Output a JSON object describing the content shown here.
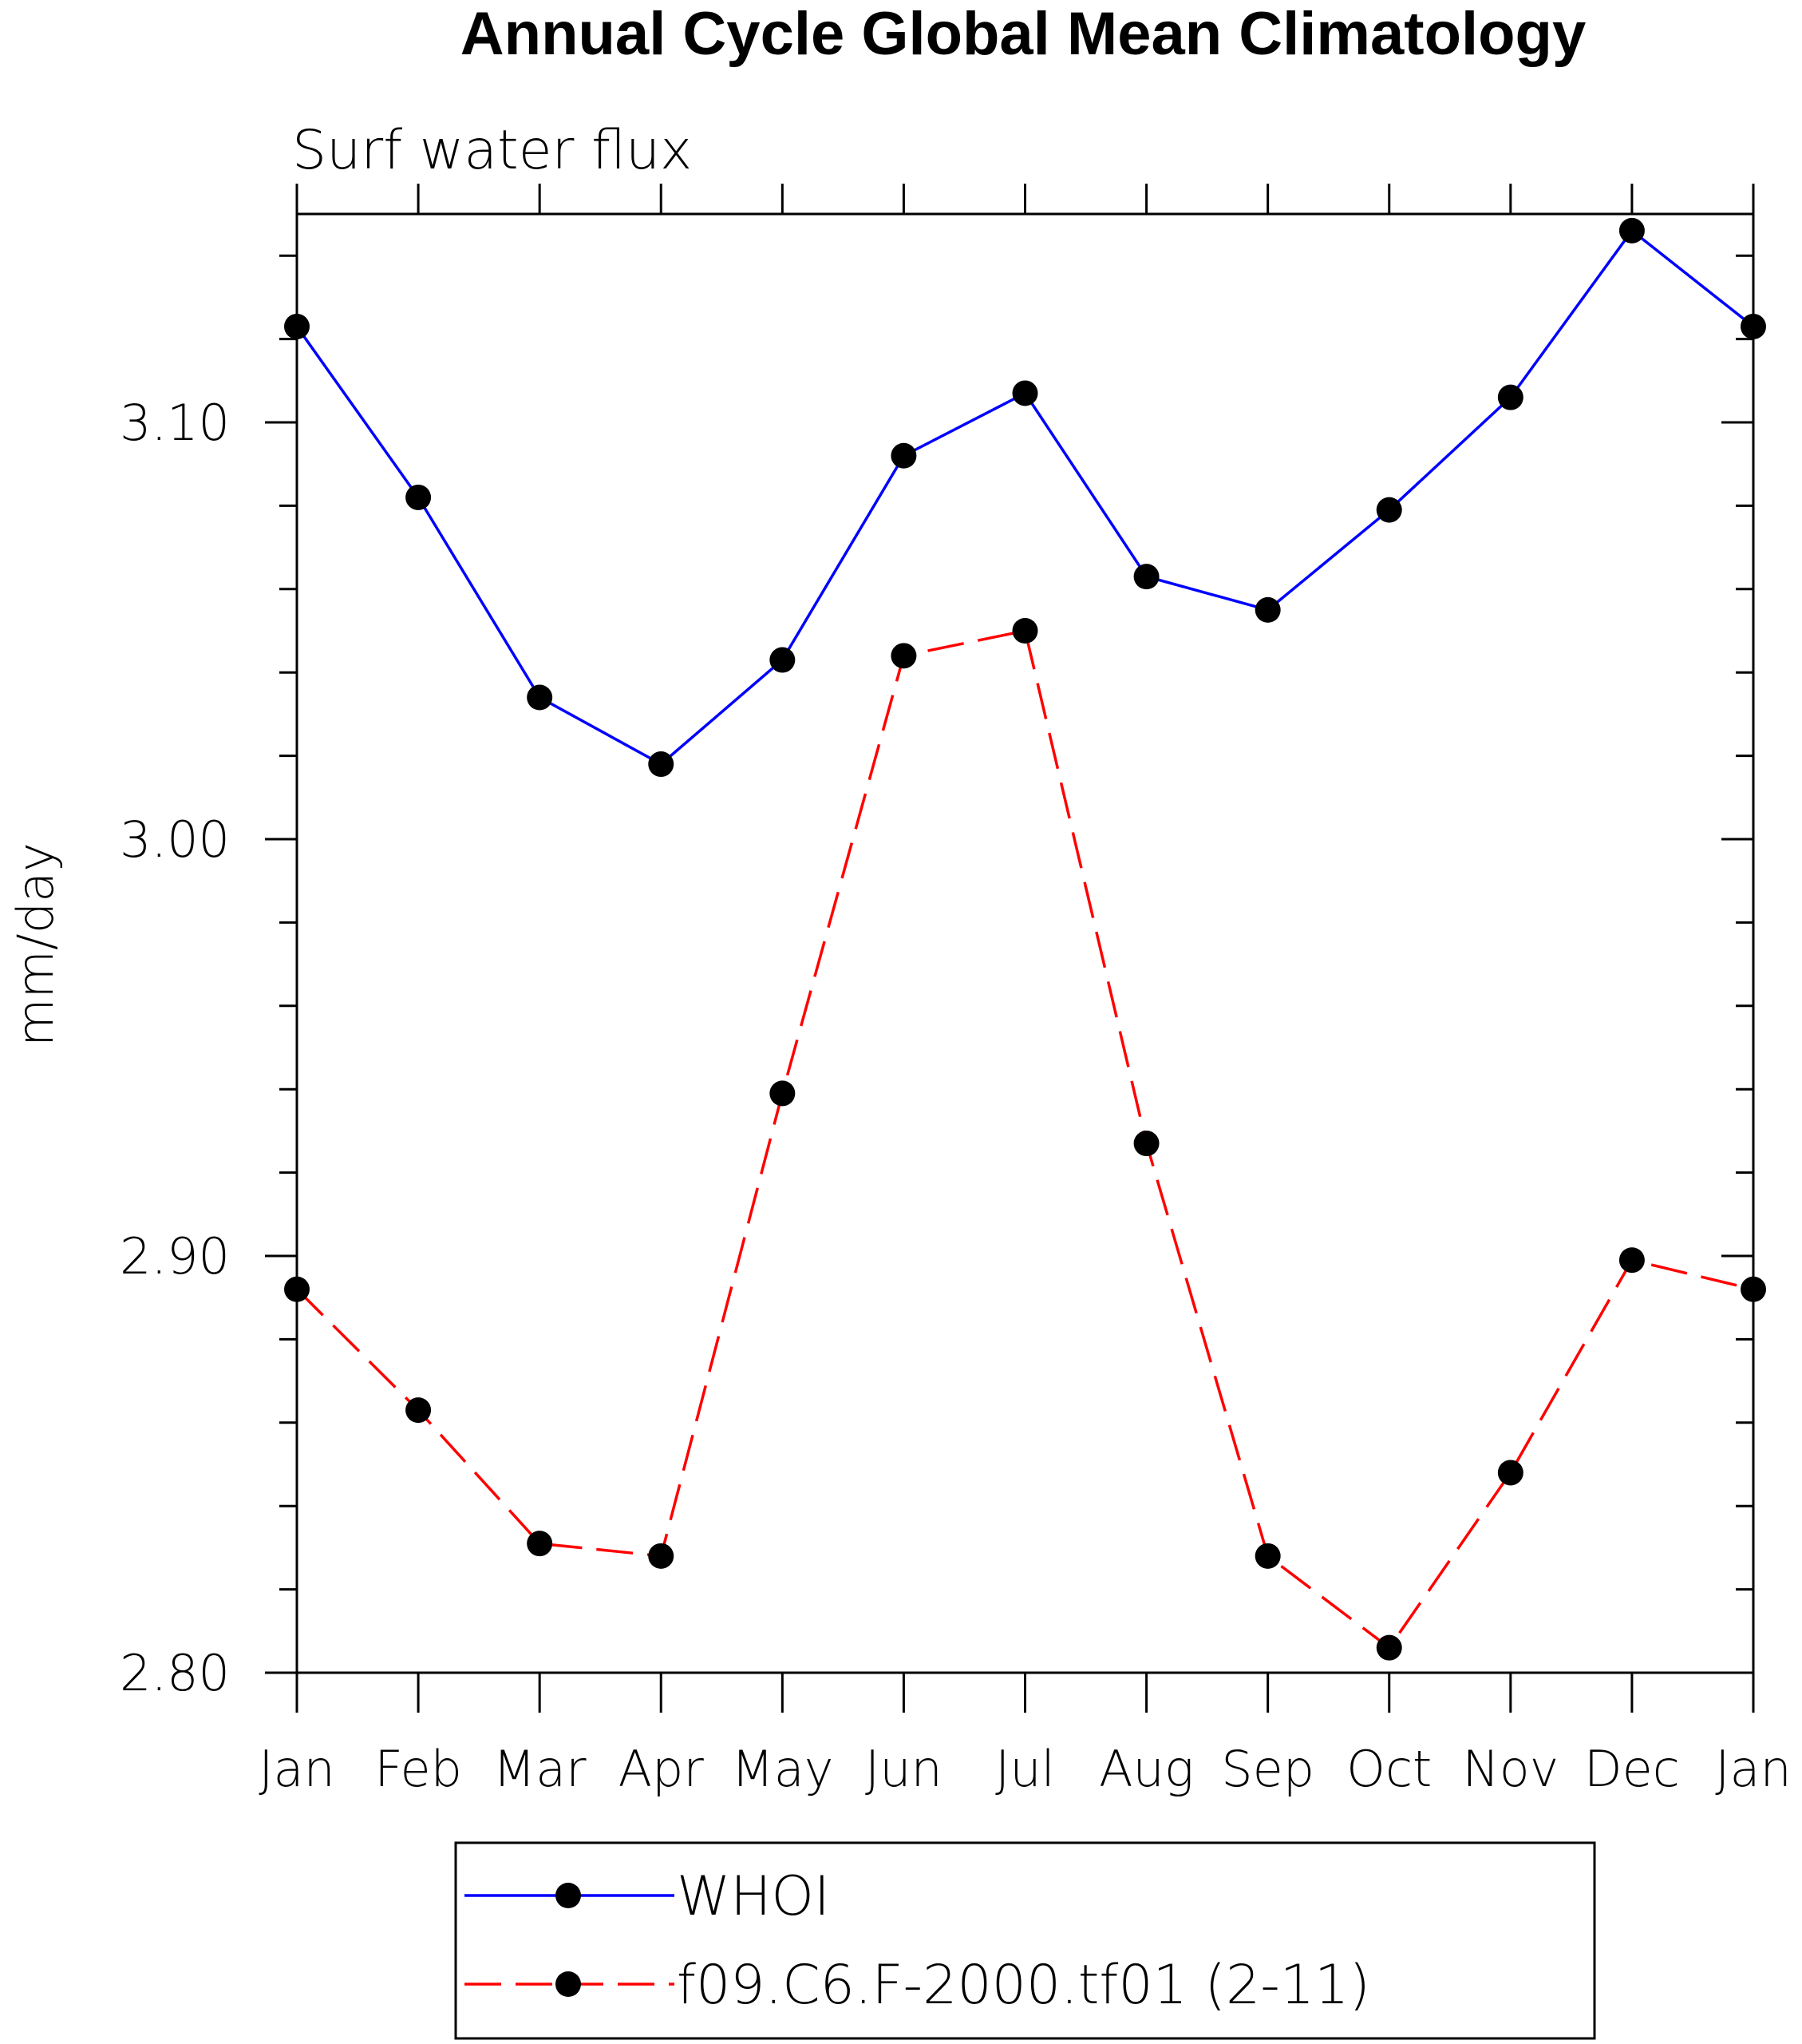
{
  "title": "Annual Cycle Global Mean Climatology",
  "subtitle": "Surf water flux",
  "chart_data": {
    "type": "line",
    "title": "Annual Cycle Global Mean Climatology",
    "subtitle": "Surf water flux",
    "xlabel": "",
    "ylabel": "mm/day",
    "categories": [
      "Jan",
      "Feb",
      "Mar",
      "Apr",
      "May",
      "Jun",
      "Jul",
      "Aug",
      "Sep",
      "Oct",
      "Nov",
      "Dec",
      "Jan"
    ],
    "ylim": [
      2.8,
      3.15
    ],
    "yticks": [
      2.8,
      2.9,
      3.0,
      3.1
    ],
    "ytick_labels": [
      "2.80",
      "2.90",
      "3.00",
      "3.10"
    ],
    "grid": false,
    "legend_position": "bottom-center",
    "series": [
      {
        "name": "WHOI",
        "color": "#0000ff",
        "line_style": "solid",
        "marker": "filled-circle",
        "values": [
          3.123,
          3.082,
          3.034,
          3.018,
          3.043,
          3.092,
          3.107,
          3.063,
          3.055,
          3.079,
          3.106,
          3.146,
          3.123
        ]
      },
      {
        "name": "f09.C6.F-2000.tf01 (2-11)",
        "color": "#ff0000",
        "line_style": "dashed",
        "marker": "filled-circle",
        "values": [
          2.892,
          2.863,
          2.831,
          2.828,
          2.939,
          3.044,
          3.05,
          2.927,
          2.828,
          2.806,
          2.848,
          2.899,
          2.892
        ]
      }
    ]
  }
}
